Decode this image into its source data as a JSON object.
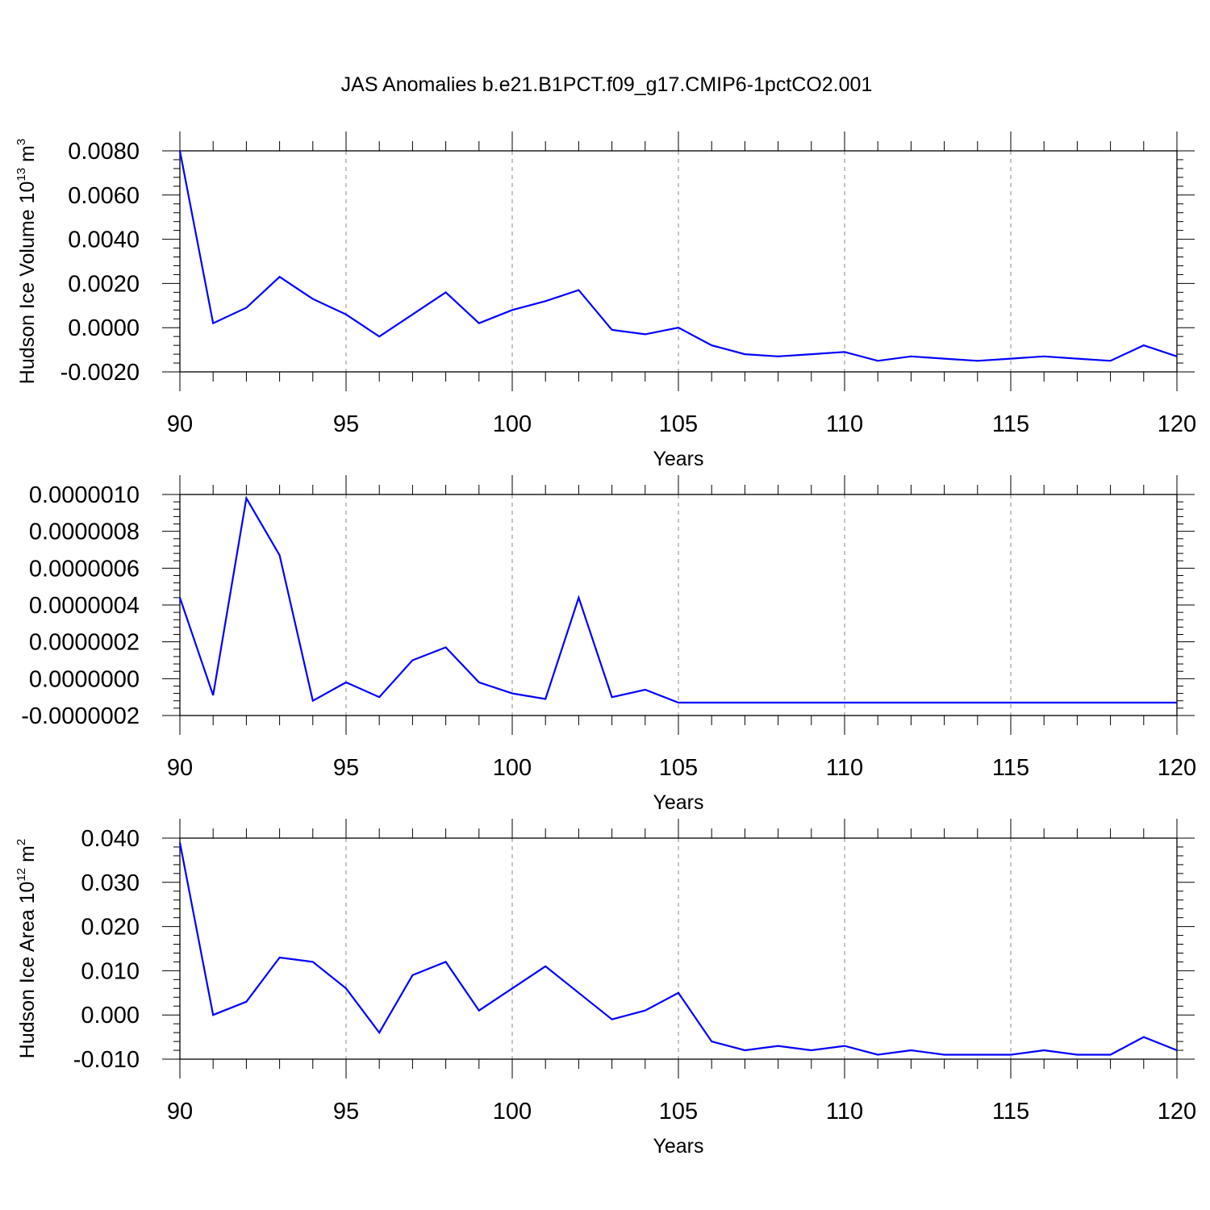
{
  "title": "JAS Anomalies b.e21.B1PCT.f09_g17.CMIP6-1pctCO2.001",
  "series_color": "#0000ff",
  "chart_data": [
    {
      "type": "line",
      "title": "",
      "xlabel": "Years",
      "ylabel_main": "Hudson Ice Volume 10",
      "ylabel_exp": "13",
      "ylabel_unit": " m",
      "ylabel_unit_exp": "3",
      "xlim": [
        90,
        120
      ],
      "ylim": [
        -0.002,
        0.008
      ],
      "x_ticks": [
        90,
        95,
        100,
        105,
        110,
        115,
        120
      ],
      "y_ticks": [
        -0.002,
        0.0,
        0.002,
        0.004,
        0.006,
        0.008
      ],
      "y_tick_labels": [
        "-0.0020",
        "0.0000",
        "0.0020",
        "0.0040",
        "0.0060",
        "0.0080"
      ],
      "grid": "vertical dashed",
      "x": [
        90,
        91,
        92,
        93,
        94,
        95,
        96,
        97,
        98,
        99,
        100,
        101,
        102,
        103,
        104,
        105,
        106,
        107,
        108,
        109,
        110,
        111,
        112,
        113,
        114,
        115,
        116,
        117,
        118,
        119,
        120
      ],
      "y": [
        0.008,
        0.0002,
        0.0009,
        0.0023,
        0.0013,
        0.0006,
        -0.0004,
        0.0006,
        0.0016,
        0.0002,
        0.0008,
        0.0012,
        0.0017,
        -0.0001,
        -0.0003,
        0.0,
        -0.0008,
        -0.0012,
        -0.0013,
        -0.0012,
        -0.0011,
        -0.0015,
        -0.0013,
        -0.0014,
        -0.0015,
        -0.0014,
        -0.0013,
        -0.0014,
        -0.0015,
        -0.0008,
        -0.0013
      ]
    },
    {
      "type": "line",
      "title": "",
      "xlabel": "Years",
      "ylabel_main": "",
      "ylabel_exp": "",
      "ylabel_unit": "",
      "ylabel_unit_exp": "",
      "xlim": [
        90,
        120
      ],
      "ylim": [
        -2e-07,
        1e-06
      ],
      "x_ticks": [
        90,
        95,
        100,
        105,
        110,
        115,
        120
      ],
      "y_ticks": [
        -2e-07,
        0.0,
        2e-07,
        4e-07,
        6e-07,
        8e-07,
        1e-06
      ],
      "y_tick_labels": [
        "-0.0000002",
        "0.0000000",
        "0.0000002",
        "0.0000004",
        "0.0000006",
        "0.0000008",
        "0.0000010"
      ],
      "grid": "vertical dashed",
      "x": [
        90,
        91,
        92,
        93,
        94,
        95,
        96,
        97,
        98,
        99,
        100,
        101,
        102,
        103,
        104,
        105,
        106,
        107,
        108,
        109,
        110,
        111,
        112,
        113,
        114,
        115,
        116,
        117,
        118,
        119,
        120
      ],
      "y": [
        4.4e-07,
        -9e-08,
        9.8e-07,
        6.7e-07,
        -1.2e-07,
        -2e-08,
        -1e-07,
        1e-07,
        1.7e-07,
        -2e-08,
        -8e-08,
        -1.1e-07,
        4.4e-07,
        -1e-07,
        -6e-08,
        -1.3e-07,
        -1.3e-07,
        -1.3e-07,
        -1.3e-07,
        -1.3e-07,
        -1.3e-07,
        -1.3e-07,
        -1.3e-07,
        -1.3e-07,
        -1.3e-07,
        -1.3e-07,
        -1.3e-07,
        -1.3e-07,
        -1.3e-07,
        -1.3e-07,
        -1.3e-07
      ]
    },
    {
      "type": "line",
      "title": "",
      "xlabel": "Years",
      "ylabel_main": "Hudson Ice Area 10",
      "ylabel_exp": "12",
      "ylabel_unit": " m",
      "ylabel_unit_exp": "2",
      "xlim": [
        90,
        120
      ],
      "ylim": [
        -0.01,
        0.04
      ],
      "x_ticks": [
        90,
        95,
        100,
        105,
        110,
        115,
        120
      ],
      "y_ticks": [
        -0.01,
        0.0,
        0.01,
        0.02,
        0.03,
        0.04
      ],
      "y_tick_labels": [
        "-0.010",
        "0.000",
        "0.010",
        "0.020",
        "0.030",
        "0.040"
      ],
      "grid": "vertical dashed",
      "x": [
        90,
        91,
        92,
        93,
        94,
        95,
        96,
        97,
        98,
        99,
        100,
        101,
        102,
        103,
        104,
        105,
        106,
        107,
        108,
        109,
        110,
        111,
        112,
        113,
        114,
        115,
        116,
        117,
        118,
        119,
        120
      ],
      "y": [
        0.039,
        0.0,
        0.003,
        0.013,
        0.012,
        0.006,
        -0.004,
        0.009,
        0.012,
        0.001,
        0.006,
        0.011,
        0.005,
        -0.001,
        0.001,
        0.005,
        -0.006,
        -0.008,
        -0.007,
        -0.008,
        -0.007,
        -0.009,
        -0.008,
        -0.009,
        -0.009,
        -0.009,
        -0.008,
        -0.009,
        -0.009,
        -0.005,
        -0.008
      ]
    }
  ]
}
